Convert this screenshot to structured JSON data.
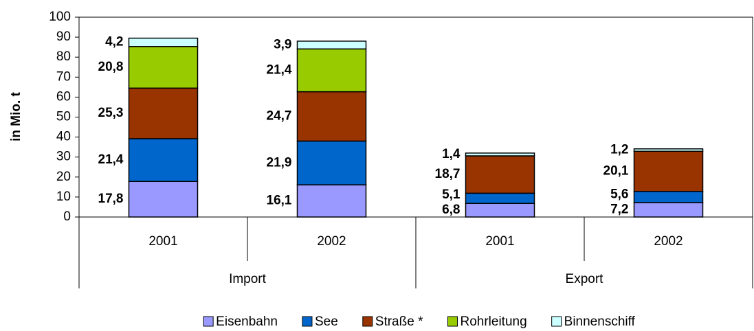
{
  "chart_data": {
    "type": "stacked_bar",
    "y_label": "in Mio. t",
    "groups": [
      {
        "name": "Import",
        "categories": [
          "2001",
          "2002"
        ]
      },
      {
        "name": "Export",
        "categories": [
          "2001",
          "2002"
        ]
      }
    ],
    "series": [
      {
        "name": "Eisenbahn",
        "color": "#9999ff",
        "values": [
          17.8,
          16.1,
          6.8,
          7.2
        ],
        "value_labels": [
          "17,8",
          "16,1",
          "6,8",
          "7,2"
        ]
      },
      {
        "name": "See",
        "color": "#0066cc",
        "values": [
          21.4,
          21.9,
          5.1,
          5.6
        ],
        "value_labels": [
          "21,4",
          "21,9",
          "5,1",
          "5,6"
        ]
      },
      {
        "name": "Straße *",
        "color": "#993300",
        "values": [
          25.3,
          24.7,
          18.7,
          20.1
        ],
        "value_labels": [
          "25,3",
          "24,7",
          "18,7",
          "20,1"
        ]
      },
      {
        "name": "Rohrleitung",
        "color": "#99cc00",
        "values": [
          20.8,
          21.4,
          null,
          null
        ],
        "value_labels": [
          "20,8",
          "21,4",
          null,
          null
        ]
      },
      {
        "name": "Binnenschiff",
        "color": "#ccffff",
        "values": [
          4.2,
          3.9,
          1.4,
          1.2
        ],
        "value_labels": [
          "4,2",
          "3,9",
          "1,4",
          "1,2"
        ]
      }
    ],
    "ylim": [
      0,
      100
    ],
    "yticks": [
      0,
      10,
      20,
      30,
      40,
      50,
      60,
      70,
      80,
      90,
      100
    ],
    "grid": false,
    "legend": "bottom"
  }
}
